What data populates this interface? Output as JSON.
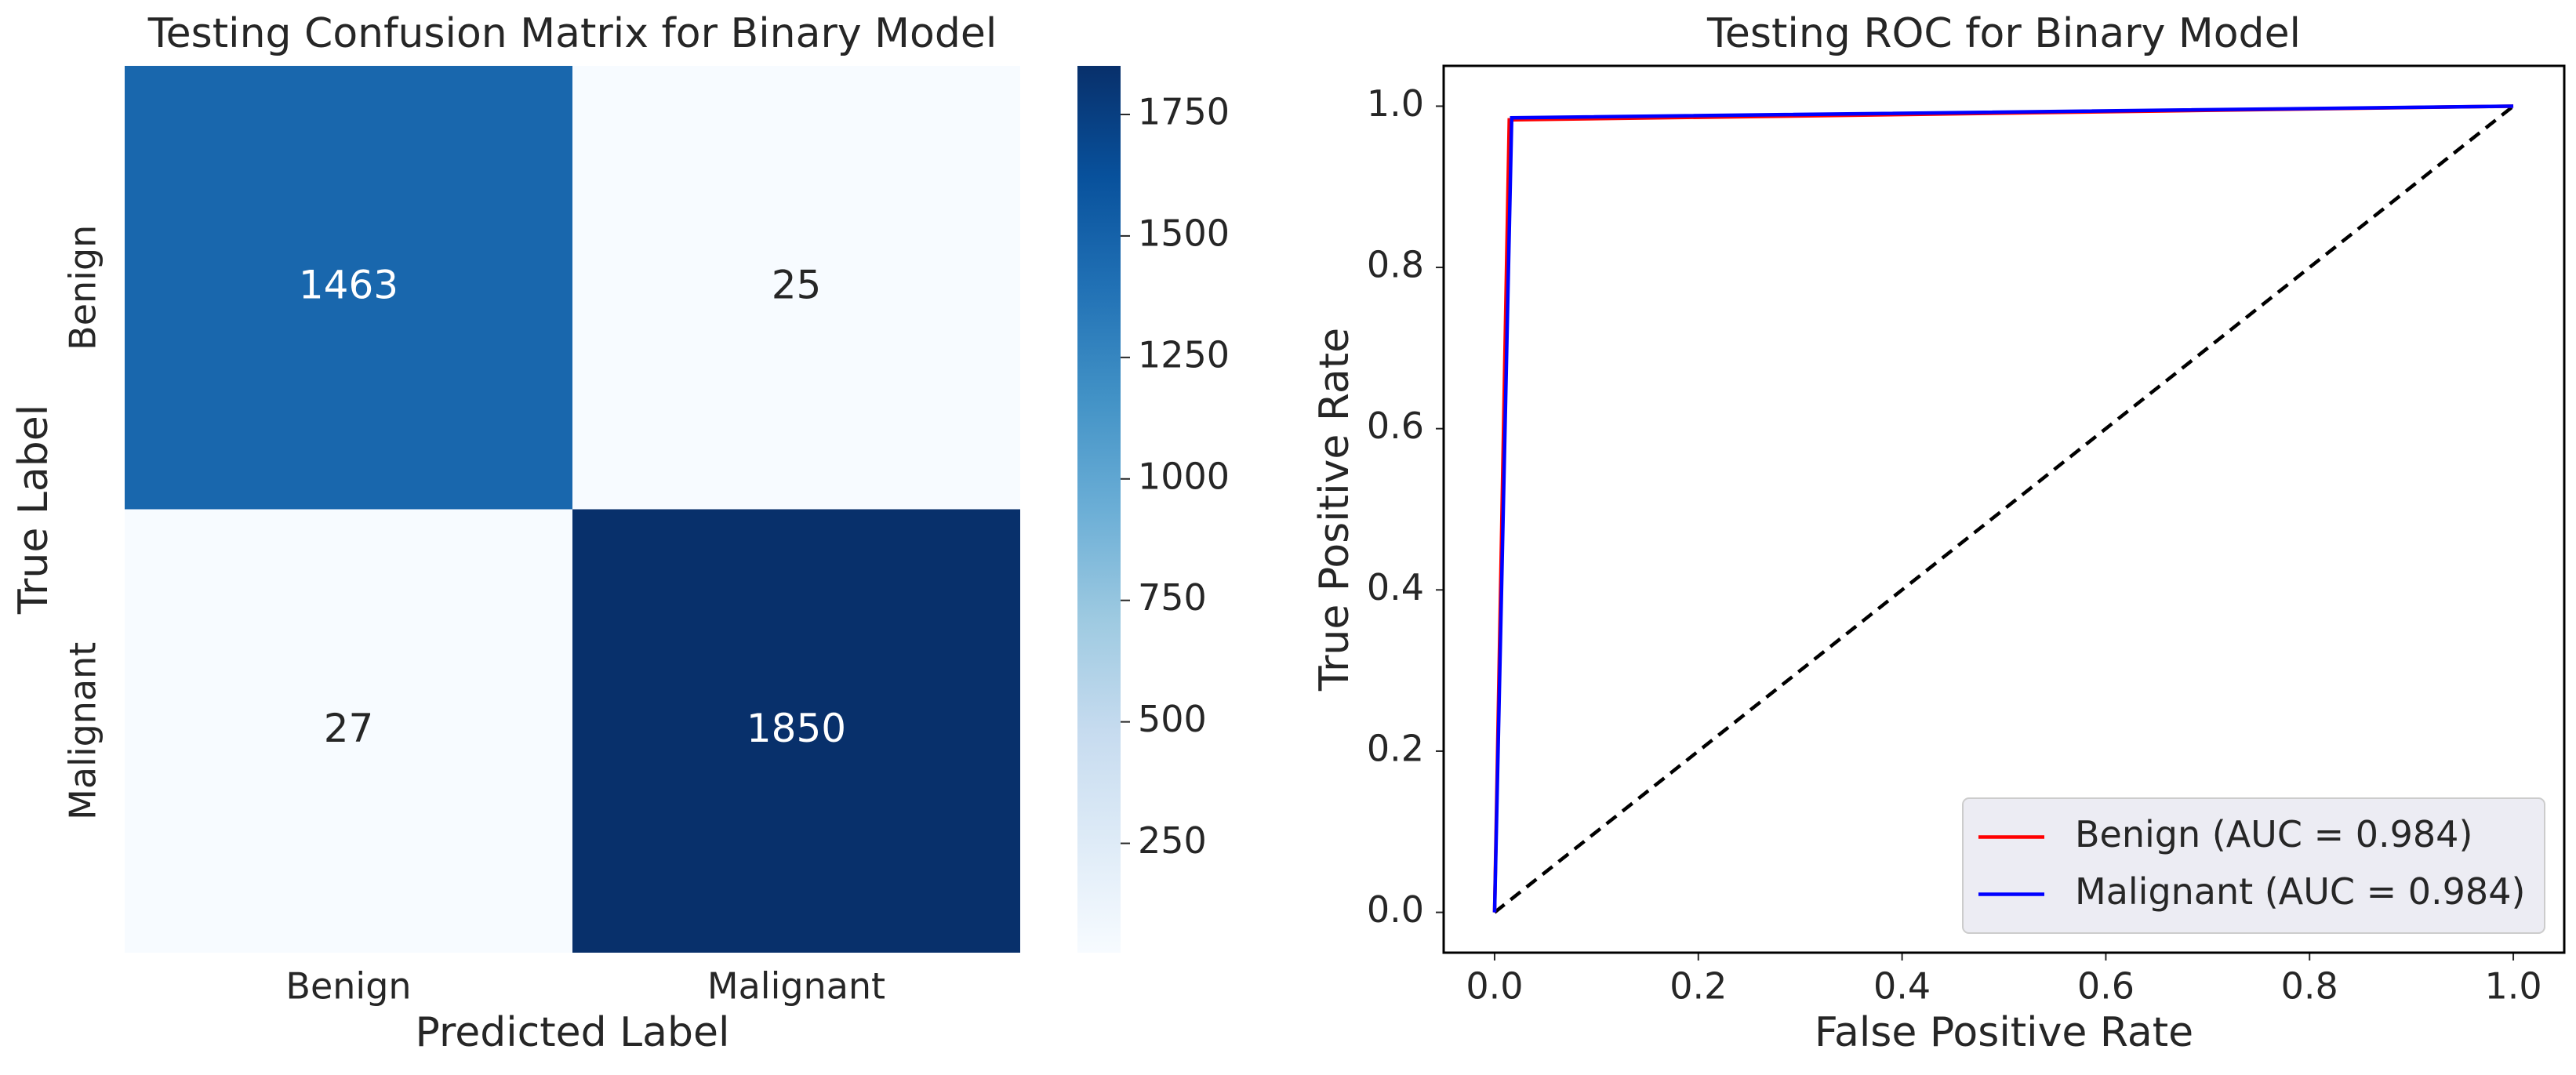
{
  "chart_data": [
    {
      "type": "heatmap",
      "title": "Testing Confusion Matrix for Binary Model",
      "xlabel": "Predicted Label",
      "ylabel": "True Label",
      "x_categories": [
        "Benign",
        "Malignant"
      ],
      "y_categories": [
        "Benign",
        "Malignant"
      ],
      "values": [
        [
          1463,
          25
        ],
        [
          27,
          1850
        ]
      ],
      "colormap": "Blues",
      "clim": [
        25,
        1850
      ],
      "colorbar_ticks": [
        250,
        500,
        750,
        1000,
        1250,
        1500,
        1750
      ]
    },
    {
      "type": "line",
      "title": "Testing ROC for Binary Model",
      "xlabel": "False Positive Rate",
      "ylabel": "True Positive Rate",
      "series": [
        {
          "name": "Benign (AUC = 0.984)",
          "color": "#ff0000",
          "x": [
            0,
            0.0144,
            1
          ],
          "values": [
            0,
            0.983,
            1
          ]
        },
        {
          "name": "Malignant (AUC = 0.984)",
          "color": "#0000ff",
          "x": [
            0,
            0.0168,
            1
          ],
          "values": [
            0,
            0.9856,
            1
          ]
        }
      ],
      "reference_line": {
        "x": [
          0,
          1
        ],
        "values": [
          0,
          1
        ],
        "color": "#000000",
        "dashed": true
      },
      "xlim": [
        -0.05,
        1.05
      ],
      "ylim": [
        -0.05,
        1.05
      ],
      "xticks": [
        {
          "value": 0,
          "label": "0.0"
        },
        0.2,
        0.4,
        0.6,
        0.8,
        {
          "value": 1,
          "label": "1.0"
        }
      ],
      "yticks": [
        {
          "value": 0,
          "label": "0.0"
        },
        0.2,
        0.4,
        0.6,
        0.8,
        {
          "value": 1,
          "label": "1.0"
        }
      ],
      "legend": "lower right"
    }
  ]
}
